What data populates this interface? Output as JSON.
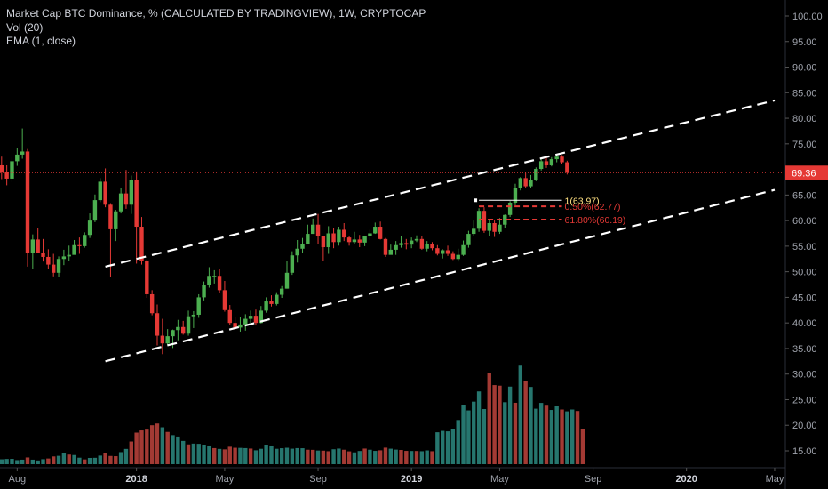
{
  "legend": {
    "line1": "Market Cap BTC Dominance, % (CALCULATED BY TRADINGVIEW), 1W, CRYPTOCAP",
    "line2": "Vol (20)",
    "line3": "EMA (1, close)"
  },
  "colors": {
    "background": "#000000",
    "up": "#4caf50",
    "down": "#e53935",
    "up_volume": "#26766e",
    "down_volume": "#a33a34",
    "channel": "#ffffff",
    "last_price_line": "#e53935",
    "fib_line": "#ffffff",
    "fib_red": "#e53935",
    "axis_text": "#a0a4ad"
  },
  "chart_data": {
    "type": "candlestick",
    "title": "Market Cap BTC Dominance, % (CALCULATED BY TRADINGVIEW), 1W, CRYPTOCAP",
    "y_axis": {
      "ylim": [
        11.5,
        102.5
      ],
      "ticks": [
        "100.00",
        "95.00",
        "90.00",
        "85.00",
        "80.00",
        "75.00",
        "70.00",
        "65.00",
        "60.00",
        "55.00",
        "50.00",
        "45.00",
        "40.00",
        "35.00",
        "30.00",
        "25.00",
        "20.00",
        "15.00"
      ],
      "tick_values": [
        100,
        95,
        90,
        85,
        80,
        75,
        70,
        65,
        60,
        55,
        50,
        45,
        40,
        35,
        30,
        25,
        20,
        15
      ]
    },
    "x_axis": {
      "labels": [
        "Aug",
        "2018",
        "May",
        "Sep",
        "2019",
        "May",
        "Sep",
        "2020",
        "May"
      ],
      "label_positions_week": [
        3,
        26,
        43,
        61,
        79,
        96,
        114,
        132,
        149
      ]
    },
    "last_price": {
      "label": "69.36",
      "value": 69.36
    },
    "channel": {
      "upper": [
        [
          20,
          51.0
        ],
        [
          149,
          83.5
        ]
      ],
      "lower": [
        [
          20,
          32.5
        ],
        [
          149,
          66.0
        ]
      ]
    },
    "fibonacci": [
      {
        "label": "1(63.97)",
        "value": 63.97,
        "color": "fib_line"
      },
      {
        "label": "0.50%(62.77)",
        "value": 62.77,
        "color": "fib_red"
      },
      {
        "label": "61.80%(60.19)",
        "value": 60.19,
        "color": "fib_red"
      }
    ],
    "volume_axis": {
      "value_min": 0,
      "value_max": 100
    },
    "candles": [
      {
        "o": 70.8,
        "h": 72.5,
        "l": 68.1,
        "c": 69.5
      },
      {
        "o": 69.5,
        "h": 70.8,
        "l": 66.9,
        "c": 68.2
      },
      {
        "o": 68.2,
        "h": 72.4,
        "l": 67.5,
        "c": 71.6
      },
      {
        "o": 71.6,
        "h": 74.1,
        "l": 70.7,
        "c": 72.9
      },
      {
        "o": 72.9,
        "h": 78.0,
        "l": 72.1,
        "c": 73.5
      },
      {
        "o": 73.5,
        "h": 74.0,
        "l": 51.0,
        "c": 53.7
      },
      {
        "o": 53.7,
        "h": 57.3,
        "l": 50.5,
        "c": 56.3
      },
      {
        "o": 56.3,
        "h": 58.5,
        "l": 53.6,
        "c": 53.6
      },
      {
        "o": 53.6,
        "h": 56.4,
        "l": 52.0,
        "c": 52.9
      },
      {
        "o": 52.9,
        "h": 54.4,
        "l": 50.6,
        "c": 51.4
      },
      {
        "o": 51.4,
        "h": 53.5,
        "l": 49.1,
        "c": 49.8
      },
      {
        "o": 49.8,
        "h": 53.0,
        "l": 49.0,
        "c": 52.5
      },
      {
        "o": 52.5,
        "h": 54.3,
        "l": 51.3,
        "c": 53.0
      },
      {
        "o": 53.0,
        "h": 55.1,
        "l": 52.2,
        "c": 53.3
      },
      {
        "o": 53.3,
        "h": 56.2,
        "l": 53.5,
        "c": 55.2
      },
      {
        "o": 55.2,
        "h": 56.7,
        "l": 53.5,
        "c": 55.0
      },
      {
        "o": 55.0,
        "h": 57.7,
        "l": 54.7,
        "c": 57.2
      },
      {
        "o": 57.2,
        "h": 61.4,
        "l": 56.6,
        "c": 60.0
      },
      {
        "o": 60.0,
        "h": 65.1,
        "l": 59.7,
        "c": 64.0
      },
      {
        "o": 64.0,
        "h": 68.3,
        "l": 63.6,
        "c": 67.6
      },
      {
        "o": 67.6,
        "h": 70.2,
        "l": 62.6,
        "c": 63.1
      },
      {
        "o": 63.1,
        "h": 63.4,
        "l": 49.0,
        "c": 58.3
      },
      {
        "o": 58.3,
        "h": 62.1,
        "l": 56.0,
        "c": 61.8
      },
      {
        "o": 61.8,
        "h": 66.3,
        "l": 61.4,
        "c": 65.3
      },
      {
        "o": 65.3,
        "h": 69.9,
        "l": 62.3,
        "c": 63.1
      },
      {
        "o": 63.1,
        "h": 68.8,
        "l": 61.3,
        "c": 68.0
      },
      {
        "o": 68.0,
        "h": 69.6,
        "l": 51.6,
        "c": 58.8
      },
      {
        "o": 58.8,
        "h": 60.7,
        "l": 51.4,
        "c": 52.2
      },
      {
        "o": 52.2,
        "h": 52.3,
        "l": 44.9,
        "c": 45.6
      },
      {
        "o": 45.6,
        "h": 46.4,
        "l": 41.5,
        "c": 41.9
      },
      {
        "o": 41.9,
        "h": 43.6,
        "l": 35.6,
        "c": 37.5
      },
      {
        "o": 37.5,
        "h": 40.8,
        "l": 33.9,
        "c": 36.0
      },
      {
        "o": 36.0,
        "h": 38.8,
        "l": 35.7,
        "c": 37.4
      },
      {
        "o": 37.4,
        "h": 38.7,
        "l": 35.1,
        "c": 38.6
      },
      {
        "o": 38.6,
        "h": 40.6,
        "l": 36.6,
        "c": 39.2
      },
      {
        "o": 39.2,
        "h": 40.4,
        "l": 37.7,
        "c": 37.9
      },
      {
        "o": 37.9,
        "h": 42.4,
        "l": 37.5,
        "c": 41.3
      },
      {
        "o": 41.3,
        "h": 42.3,
        "l": 39.0,
        "c": 41.6
      },
      {
        "o": 41.6,
        "h": 45.6,
        "l": 41.0,
        "c": 45.0
      },
      {
        "o": 45.0,
        "h": 48.1,
        "l": 44.4,
        "c": 47.4
      },
      {
        "o": 47.4,
        "h": 50.9,
        "l": 46.9,
        "c": 49.2
      },
      {
        "o": 49.2,
        "h": 50.3,
        "l": 47.7,
        "c": 49.2
      },
      {
        "o": 49.2,
        "h": 50.5,
        "l": 45.8,
        "c": 46.4
      },
      {
        "o": 46.4,
        "h": 48.2,
        "l": 42.2,
        "c": 42.5
      },
      {
        "o": 42.5,
        "h": 43.5,
        "l": 39.6,
        "c": 40.0
      },
      {
        "o": 40.0,
        "h": 41.2,
        "l": 38.7,
        "c": 39.1
      },
      {
        "o": 39.1,
        "h": 41.2,
        "l": 38.3,
        "c": 39.7
      },
      {
        "o": 39.7,
        "h": 41.7,
        "l": 38.5,
        "c": 40.8
      },
      {
        "o": 40.8,
        "h": 42.4,
        "l": 40.0,
        "c": 41.4
      },
      {
        "o": 41.4,
        "h": 42.6,
        "l": 39.5,
        "c": 40.0
      },
      {
        "o": 40.0,
        "h": 43.3,
        "l": 39.9,
        "c": 42.4
      },
      {
        "o": 42.4,
        "h": 45.0,
        "l": 42.0,
        "c": 44.2
      },
      {
        "o": 44.2,
        "h": 45.4,
        "l": 43.2,
        "c": 43.7
      },
      {
        "o": 43.7,
        "h": 46.0,
        "l": 43.4,
        "c": 45.5
      },
      {
        "o": 45.5,
        "h": 47.2,
        "l": 44.9,
        "c": 46.7
      },
      {
        "o": 46.7,
        "h": 52.2,
        "l": 46.7,
        "c": 49.8
      },
      {
        "o": 49.8,
        "h": 54.0,
        "l": 49.4,
        "c": 53.2
      },
      {
        "o": 53.2,
        "h": 56.2,
        "l": 51.8,
        "c": 54.5
      },
      {
        "o": 54.5,
        "h": 56.6,
        "l": 53.6,
        "c": 55.4
      },
      {
        "o": 55.4,
        "h": 59.2,
        "l": 55.4,
        "c": 57.4
      },
      {
        "o": 57.4,
        "h": 60.4,
        "l": 57.4,
        "c": 59.2
      },
      {
        "o": 59.2,
        "h": 61.3,
        "l": 55.5,
        "c": 56.9
      },
      {
        "o": 56.9,
        "h": 57.0,
        "l": 52.2,
        "c": 54.8
      },
      {
        "o": 54.8,
        "h": 58.9,
        "l": 53.5,
        "c": 57.5
      },
      {
        "o": 57.5,
        "h": 58.5,
        "l": 54.6,
        "c": 55.8
      },
      {
        "o": 55.8,
        "h": 58.8,
        "l": 55.1,
        "c": 58.2
      },
      {
        "o": 58.2,
        "h": 59.5,
        "l": 56.0,
        "c": 56.7
      },
      {
        "o": 56.7,
        "h": 57.0,
        "l": 55.1,
        "c": 55.8
      },
      {
        "o": 55.8,
        "h": 57.8,
        "l": 55.4,
        "c": 56.3
      },
      {
        "o": 56.3,
        "h": 57.2,
        "l": 54.8,
        "c": 55.7
      },
      {
        "o": 55.7,
        "h": 57.0,
        "l": 55.0,
        "c": 56.9
      },
      {
        "o": 56.9,
        "h": 58.2,
        "l": 56.2,
        "c": 57.5
      },
      {
        "o": 57.5,
        "h": 59.6,
        "l": 57.4,
        "c": 58.8
      },
      {
        "o": 58.8,
        "h": 59.8,
        "l": 56.3,
        "c": 56.4
      },
      {
        "o": 56.4,
        "h": 56.6,
        "l": 52.9,
        "c": 53.3
      },
      {
        "o": 53.3,
        "h": 55.3,
        "l": 53.4,
        "c": 54.3
      },
      {
        "o": 54.3,
        "h": 56.0,
        "l": 53.3,
        "c": 55.2
      },
      {
        "o": 55.2,
        "h": 56.9,
        "l": 54.7,
        "c": 55.6
      },
      {
        "o": 55.6,
        "h": 56.4,
        "l": 54.4,
        "c": 55.3
      },
      {
        "o": 55.3,
        "h": 56.7,
        "l": 54.6,
        "c": 56.1
      },
      {
        "o": 56.1,
        "h": 57.1,
        "l": 55.8,
        "c": 56.4
      },
      {
        "o": 56.4,
        "h": 57.0,
        "l": 54.3,
        "c": 54.5
      },
      {
        "o": 54.5,
        "h": 56.0,
        "l": 54.0,
        "c": 55.4
      },
      {
        "o": 55.4,
        "h": 55.8,
        "l": 54.2,
        "c": 54.6
      },
      {
        "o": 54.6,
        "h": 55.2,
        "l": 53.2,
        "c": 53.5
      },
      {
        "o": 53.5,
        "h": 54.4,
        "l": 52.6,
        "c": 54.2
      },
      {
        "o": 54.2,
        "h": 55.1,
        "l": 53.1,
        "c": 53.5
      },
      {
        "o": 53.5,
        "h": 54.0,
        "l": 52.3,
        "c": 52.5
      },
      {
        "o": 52.5,
        "h": 54.5,
        "l": 52.0,
        "c": 53.3
      },
      {
        "o": 53.3,
        "h": 56.1,
        "l": 53.1,
        "c": 55.2
      },
      {
        "o": 55.2,
        "h": 58.0,
        "l": 54.7,
        "c": 57.4
      },
      {
        "o": 57.4,
        "h": 60.0,
        "l": 56.9,
        "c": 58.4
      },
      {
        "o": 58.4,
        "h": 62.4,
        "l": 57.8,
        "c": 61.9
      },
      {
        "o": 61.9,
        "h": 62.6,
        "l": 57.6,
        "c": 58.0
      },
      {
        "o": 58.0,
        "h": 60.2,
        "l": 57.0,
        "c": 59.5
      },
      {
        "o": 59.5,
        "h": 60.2,
        "l": 56.8,
        "c": 57.8
      },
      {
        "o": 57.8,
        "h": 60.5,
        "l": 57.4,
        "c": 59.2
      },
      {
        "o": 59.2,
        "h": 61.2,
        "l": 58.5,
        "c": 61.1
      },
      {
        "o": 61.1,
        "h": 63.8,
        "l": 60.7,
        "c": 63.5
      },
      {
        "o": 63.5,
        "h": 67.2,
        "l": 63.0,
        "c": 66.4
      },
      {
        "o": 66.4,
        "h": 68.5,
        "l": 65.9,
        "c": 68.3
      },
      {
        "o": 68.3,
        "h": 69.3,
        "l": 66.3,
        "c": 66.7
      },
      {
        "o": 66.7,
        "h": 68.9,
        "l": 66.3,
        "c": 68.0
      },
      {
        "o": 68.0,
        "h": 70.4,
        "l": 67.7,
        "c": 70.1
      },
      {
        "o": 70.1,
        "h": 72.0,
        "l": 69.8,
        "c": 71.6
      },
      {
        "o": 71.6,
        "h": 72.3,
        "l": 70.3,
        "c": 70.8
      },
      {
        "o": 70.8,
        "h": 72.4,
        "l": 70.6,
        "c": 72.0
      },
      {
        "o": 72.0,
        "h": 72.7,
        "l": 71.4,
        "c": 72.5
      },
      {
        "o": 72.5,
        "h": 72.8,
        "l": 71.0,
        "c": 71.4
      },
      {
        "o": 71.4,
        "h": 71.7,
        "l": 69.0,
        "c": 69.36
      }
    ],
    "volumes": [
      {
        "v": 4.2,
        "up": true
      },
      {
        "v": 4.5,
        "up": true
      },
      {
        "v": 4.6,
        "up": true
      },
      {
        "v": 3.5,
        "up": true
      },
      {
        "v": 3.9,
        "up": true
      },
      {
        "v": 5.8,
        "up": false
      },
      {
        "v": 3.9,
        "up": true
      },
      {
        "v": 3.2,
        "up": true
      },
      {
        "v": 4.3,
        "up": true
      },
      {
        "v": 4.9,
        "up": false
      },
      {
        "v": 6.7,
        "up": false
      },
      {
        "v": 7.2,
        "up": true
      },
      {
        "v": 9.5,
        "up": true
      },
      {
        "v": 8.3,
        "up": false
      },
      {
        "v": 7.9,
        "up": true
      },
      {
        "v": 5.6,
        "up": true
      },
      {
        "v": 4.1,
        "up": false
      },
      {
        "v": 5.4,
        "up": true
      },
      {
        "v": 5.5,
        "up": true
      },
      {
        "v": 7.4,
        "up": true
      },
      {
        "v": 9.8,
        "up": false
      },
      {
        "v": 7.1,
        "up": false
      },
      {
        "v": 6.9,
        "up": false
      },
      {
        "v": 10.4,
        "up": true
      },
      {
        "v": 13.2,
        "up": true
      },
      {
        "v": 19.6,
        "up": false
      },
      {
        "v": 27.3,
        "up": false
      },
      {
        "v": 29.2,
        "up": false
      },
      {
        "v": 29.9,
        "up": false
      },
      {
        "v": 33.7,
        "up": false
      },
      {
        "v": 35.2,
        "up": false
      },
      {
        "v": 31.9,
        "up": true
      },
      {
        "v": 27.9,
        "up": false
      },
      {
        "v": 25.1,
        "up": true
      },
      {
        "v": 23.9,
        "up": true
      },
      {
        "v": 20.1,
        "up": true
      },
      {
        "v": 17.1,
        "up": false
      },
      {
        "v": 17.8,
        "up": true
      },
      {
        "v": 17.6,
        "up": true
      },
      {
        "v": 16.2,
        "up": true
      },
      {
        "v": 15.4,
        "up": true
      },
      {
        "v": 13.9,
        "up": false
      },
      {
        "v": 13.2,
        "up": true
      },
      {
        "v": 12.8,
        "up": false
      },
      {
        "v": 15.1,
        "up": false
      },
      {
        "v": 14.2,
        "up": false
      },
      {
        "v": 14.1,
        "up": true
      },
      {
        "v": 13.9,
        "up": true
      },
      {
        "v": 13.5,
        "up": false
      },
      {
        "v": 12.0,
        "up": true
      },
      {
        "v": 13.3,
        "up": true
      },
      {
        "v": 16.6,
        "up": true
      },
      {
        "v": 15.4,
        "up": true
      },
      {
        "v": 13.3,
        "up": true
      },
      {
        "v": 13.8,
        "up": true
      },
      {
        "v": 14.2,
        "up": true
      },
      {
        "v": 13.4,
        "up": true
      },
      {
        "v": 13.9,
        "up": true
      },
      {
        "v": 13.8,
        "up": true
      },
      {
        "v": 12.5,
        "up": false
      },
      {
        "v": 12.4,
        "up": false
      },
      {
        "v": 11.8,
        "up": true
      },
      {
        "v": 11.7,
        "up": false
      },
      {
        "v": 11.2,
        "up": false
      },
      {
        "v": 12.9,
        "up": true
      },
      {
        "v": 13.5,
        "up": true
      },
      {
        "v": 12.5,
        "up": false
      },
      {
        "v": 11.1,
        "up": false
      },
      {
        "v": 10.2,
        "up": true
      },
      {
        "v": 11.4,
        "up": true
      },
      {
        "v": 13.5,
        "up": false
      },
      {
        "v": 12.5,
        "up": true
      },
      {
        "v": 11.5,
        "up": true
      },
      {
        "v": 12.0,
        "up": false
      },
      {
        "v": 14.3,
        "up": false
      },
      {
        "v": 13.4,
        "up": true
      },
      {
        "v": 12.6,
        "up": true
      },
      {
        "v": 12.3,
        "up": false
      },
      {
        "v": 11.5,
        "up": false
      },
      {
        "v": 11.4,
        "up": true
      },
      {
        "v": 11.4,
        "up": false
      },
      {
        "v": 11.2,
        "up": true
      },
      {
        "v": 11.9,
        "up": true
      },
      {
        "v": 11.2,
        "up": false
      },
      {
        "v": 27.6,
        "up": true
      },
      {
        "v": 28.8,
        "up": true
      },
      {
        "v": 28.4,
        "up": true
      },
      {
        "v": 30.1,
        "up": true
      },
      {
        "v": 38.2,
        "up": true
      },
      {
        "v": 51.3,
        "up": true
      },
      {
        "v": 46.5,
        "up": true
      },
      {
        "v": 54.1,
        "up": true
      },
      {
        "v": 62.9,
        "up": true
      },
      {
        "v": 47.7,
        "up": true
      },
      {
        "v": 78.5,
        "up": false
      },
      {
        "v": 68.4,
        "up": false
      },
      {
        "v": 67.9,
        "up": false
      },
      {
        "v": 53.6,
        "up": true
      },
      {
        "v": 67.1,
        "up": true
      },
      {
        "v": 53.1,
        "up": false
      },
      {
        "v": 85.2,
        "up": true
      },
      {
        "v": 71.6,
        "up": false
      },
      {
        "v": 66.8,
        "up": true
      },
      {
        "v": 48.0,
        "up": true
      },
      {
        "v": 53.0,
        "up": true
      },
      {
        "v": 50.6,
        "up": false
      },
      {
        "v": 46.9,
        "up": true
      },
      {
        "v": 50.0,
        "up": true
      },
      {
        "v": 47.3,
        "up": false
      },
      {
        "v": 45.7,
        "up": true
      },
      {
        "v": 47.3,
        "up": true
      },
      {
        "v": 46.0,
        "up": false
      },
      {
        "v": 30.6,
        "up": false
      }
    ]
  }
}
